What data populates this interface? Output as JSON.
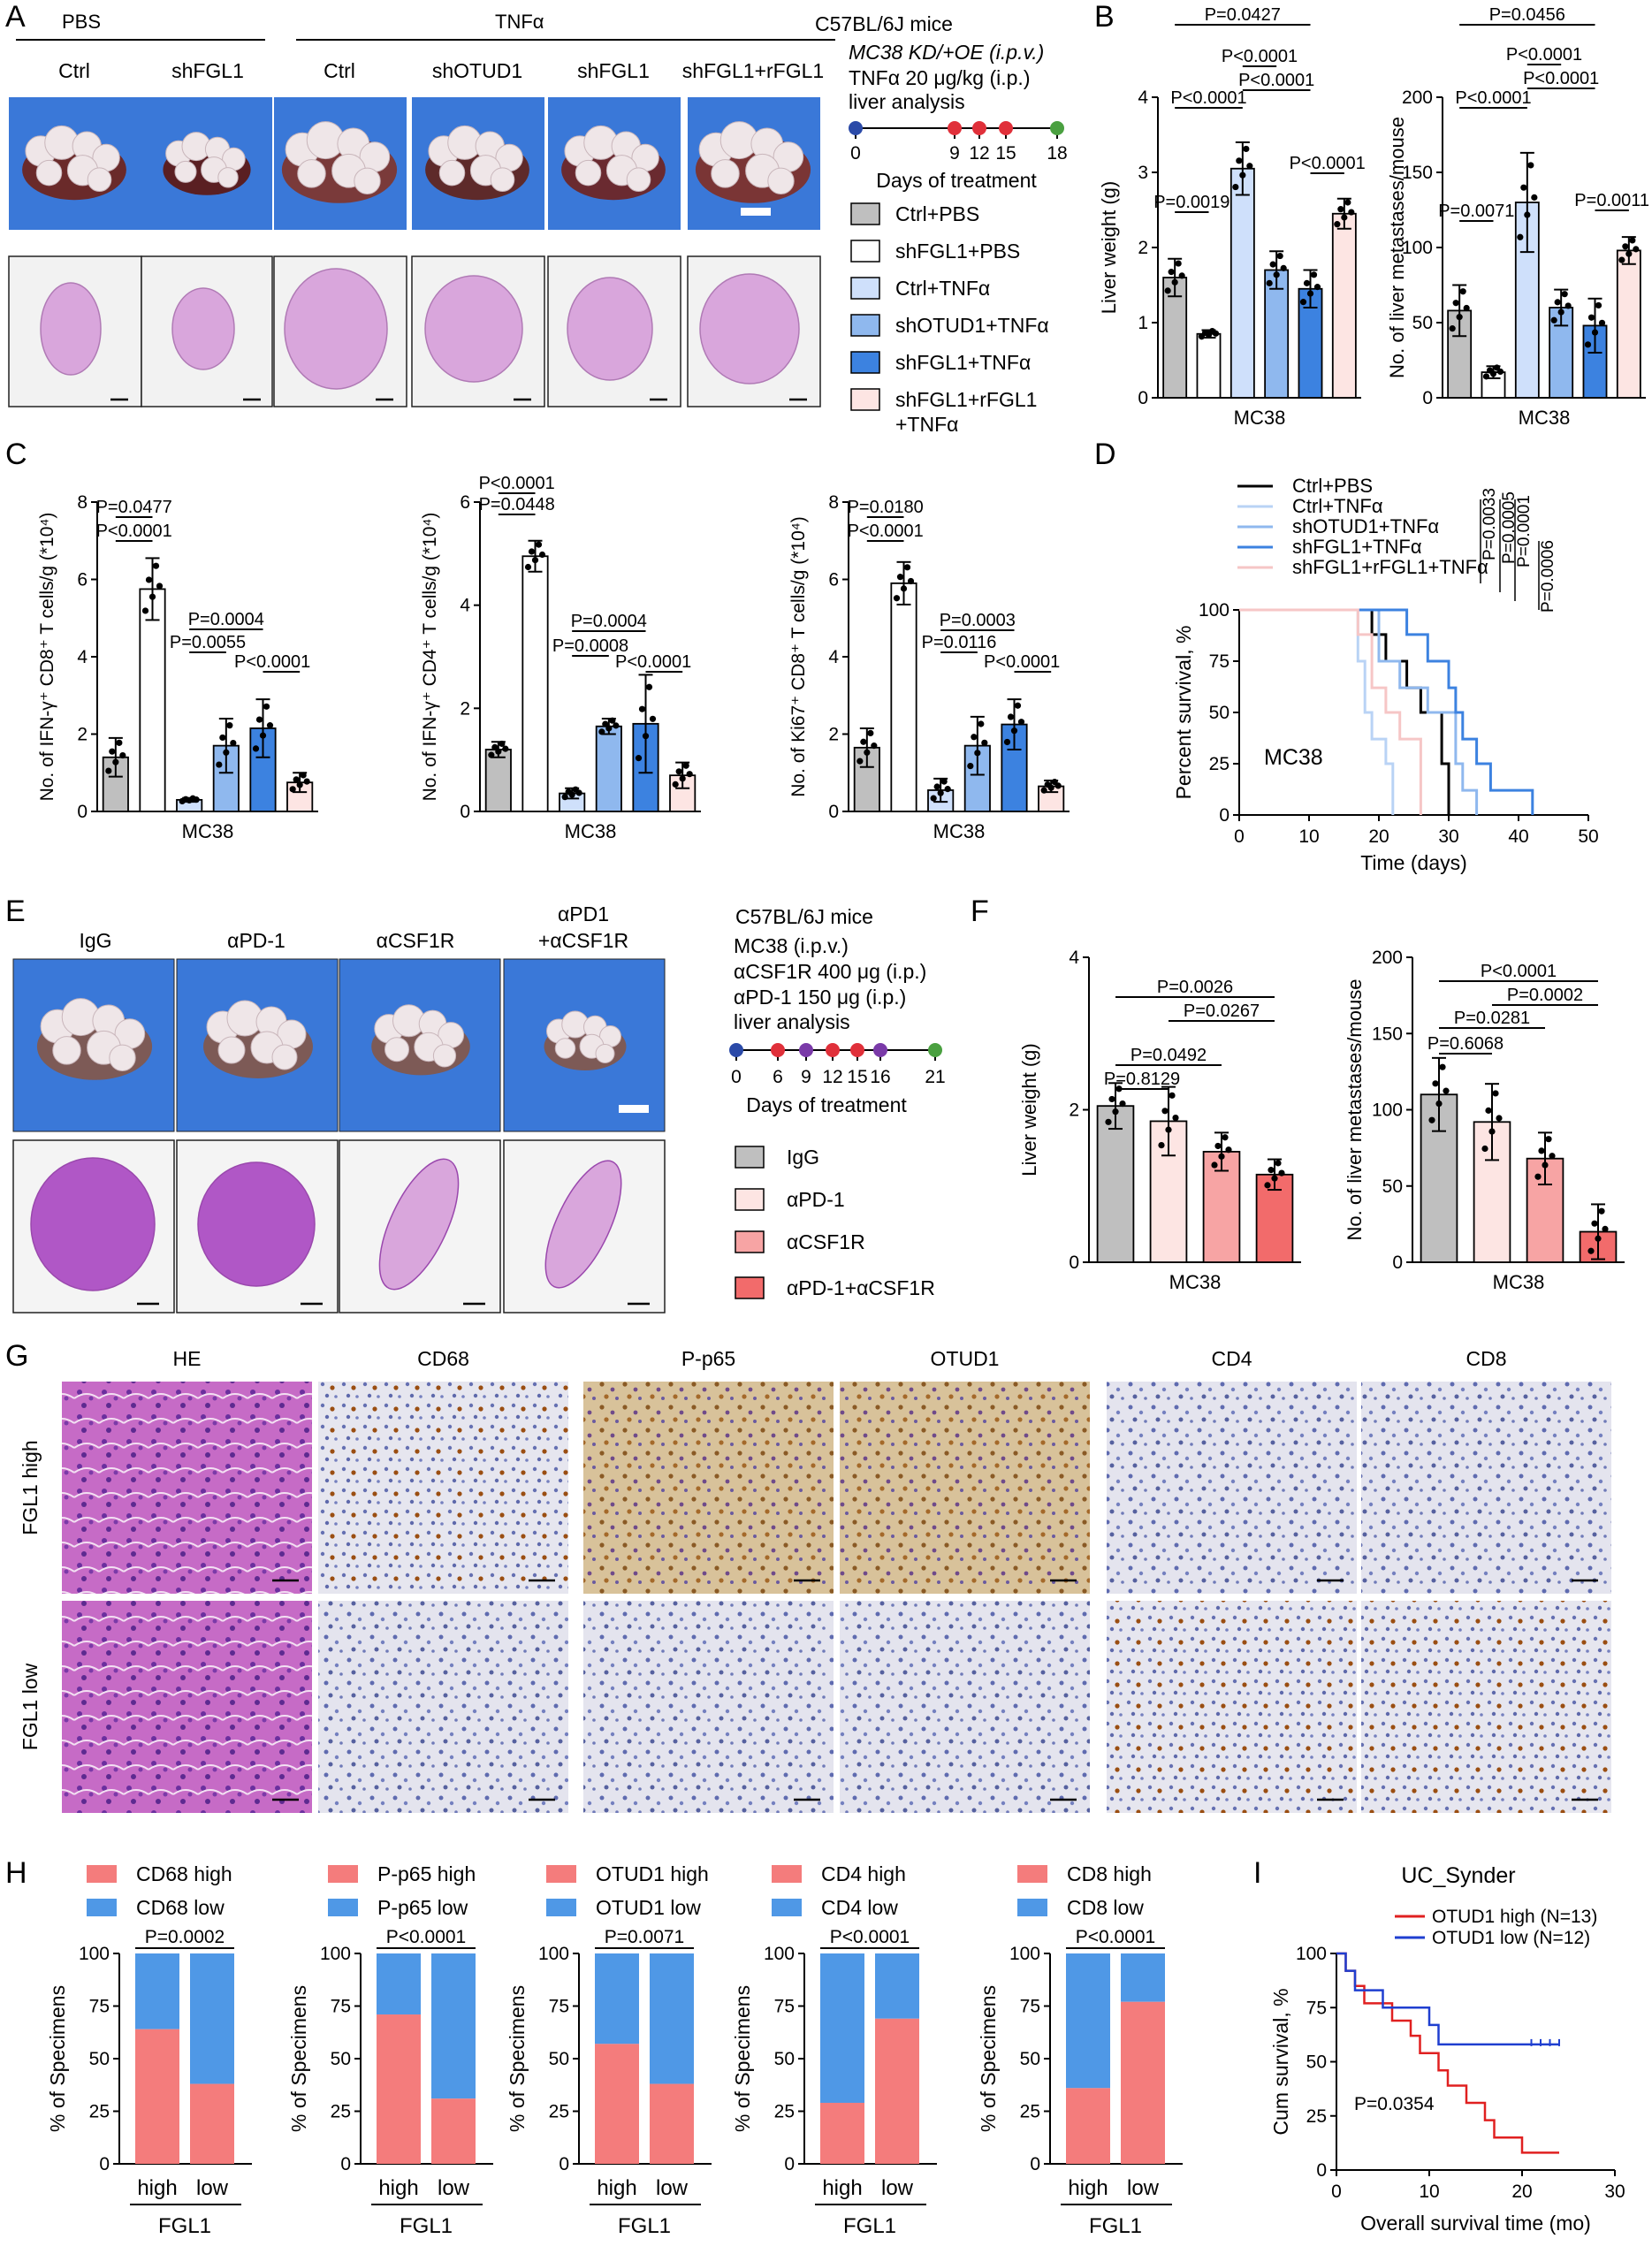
{
  "colors": {
    "ctrl_pbs": "#bfbfbf",
    "sh_pbs": "#ffffff",
    "ctrl_tnf": "#cfe0fb",
    "shotud_tnf": "#8fb8ee",
    "shfgl_tnf": "#3c82e0",
    "rfgl_tnf": "#fde5e3",
    "high": "#f47c7c",
    "low": "#4f98e6",
    "igg": "#bfbfbf",
    "apd1": "#fde5e3",
    "acsf1r": "#f7a4a4",
    "combo": "#f26b6b",
    "photo_blue": "#3a78d8",
    "he_pink": "#d9a6dc"
  },
  "panelA": {
    "label": "A",
    "groups": {
      "pbs": "PBS",
      "tnf": "TNFα"
    },
    "cols": [
      "Ctrl",
      "shFGL1",
      "Ctrl",
      "shOTUD1",
      "shFGL1",
      "shFGL1+rFGL1"
    ],
    "mouse": "C57BL/6J mice",
    "treat1": "MC38 KD/+OE (i.p.v.)",
    "treat2": "TNFα 20 μg/kg (i.p.)",
    "treat3": "liver analysis",
    "days": [
      "0",
      "9",
      "12",
      "15",
      "18"
    ],
    "days_title": "Days of treatment",
    "legend": [
      "Ctrl+PBS",
      "shFGL1+PBS",
      "Ctrl+TNFα",
      "shOTUD1+TNFα",
      "shFGL1+TNFα",
      "shFGL1+rFGL1",
      "+TNFα"
    ]
  },
  "panelB": {
    "label": "B",
    "chart_data": [
      {
        "type": "bar",
        "categories": [
          "Ctrl+PBS",
          "shFGL1+PBS",
          "Ctrl+TNFα",
          "shOTUD1+TNFα",
          "shFGL1+TNFα",
          "shFGL1+rFGL1+TNFα"
        ],
        "values": [
          1.6,
          0.85,
          3.05,
          1.7,
          1.45,
          2.45
        ],
        "errors": [
          0.25,
          0.05,
          0.35,
          0.25,
          0.25,
          0.2
        ],
        "ylabel": "Liver weight (g)",
        "xlabel": "MC38",
        "ylim": [
          0,
          4
        ],
        "yticks": [
          "0",
          "1",
          "2",
          "3",
          "4"
        ],
        "pvalues": [
          "P=0.0019",
          "P<0.0001",
          "P=0.0427",
          "P<0.0001",
          "P<0.0001",
          "P<0.0001"
        ]
      },
      {
        "type": "bar",
        "categories": [
          "Ctrl+PBS",
          "shFGL1+PBS",
          "Ctrl+TNFα",
          "shOTUD1+TNFα",
          "shFGL1+TNFα",
          "shFGL1+rFGL1+TNFα"
        ],
        "values": [
          58,
          17,
          130,
          60,
          48,
          98
        ],
        "errors": [
          17,
          4,
          33,
          12,
          18,
          9
        ],
        "ylabel": "No. of liver metastases/mouse",
        "xlabel": "MC38",
        "ylim": [
          0,
          200
        ],
        "yticks": [
          "0",
          "50",
          "100",
          "150",
          "200"
        ],
        "pvalues": [
          "P=0.0071",
          "P<0.0001",
          "P=0.0456",
          "P<0.0001",
          "P<0.0001",
          "P=0.0011"
        ]
      }
    ]
  },
  "panelC": {
    "label": "C",
    "chart_data": [
      {
        "type": "bar",
        "values": [
          1.4,
          5.75,
          0.3,
          1.7,
          2.15,
          0.75
        ],
        "errors": [
          0.5,
          0.8,
          0.05,
          0.7,
          0.75,
          0.25
        ],
        "ylabel": "No. of IFN-γ⁺ CD8⁺ T cells/g (*10⁴)",
        "xlabel": "MC38",
        "ylim": [
          0,
          8
        ],
        "yticks": [
          "0",
          "2",
          "4",
          "6",
          "8"
        ],
        "pvalues": [
          "P=0.0477",
          "P<0.0001",
          "P=0.0004",
          "P=0.0055",
          "P<0.0001"
        ]
      },
      {
        "type": "bar",
        "values": [
          1.2,
          4.95,
          0.35,
          1.65,
          1.7,
          0.7
        ],
        "errors": [
          0.15,
          0.3,
          0.1,
          0.15,
          0.95,
          0.25
        ],
        "ylabel": "No. of IFN-γ⁺ CD4⁺ T cells/g (*10⁴)",
        "xlabel": "MC38",
        "ylim": [
          0,
          6
        ],
        "yticks": [
          "0",
          "2",
          "4",
          "6"
        ],
        "pvalues": [
          "P=0.0448",
          "P<0.0001",
          "P=0.0004",
          "P=0.0008",
          "P<0.0001"
        ]
      },
      {
        "type": "bar",
        "values": [
          1.65,
          5.9,
          0.55,
          1.7,
          2.25,
          0.65
        ],
        "errors": [
          0.5,
          0.55,
          0.3,
          0.75,
          0.65,
          0.15
        ],
        "ylabel": "No. of  Ki67⁺ CD8⁺ T cells/g (*10⁴)",
        "xlabel": "MC38",
        "ylim": [
          0,
          8
        ],
        "yticks": [
          "0",
          "2",
          "4",
          "6",
          "8"
        ],
        "pvalues": [
          "P=0.0180",
          "P<0.0001",
          "P=0.0003",
          "P=0.0116",
          "P<0.0001"
        ]
      }
    ]
  },
  "panelD": {
    "label": "D",
    "chart_data": {
      "type": "line",
      "xlabel": "Time (days)",
      "ylabel": "Percent survival, %",
      "xlim": [
        0,
        50
      ],
      "ylim": [
        0,
        100
      ],
      "xticks": [
        "0",
        "10",
        "20",
        "30",
        "40",
        "50"
      ],
      "yticks": [
        "0",
        "25",
        "50",
        "75",
        "100"
      ],
      "annotation": "MC38",
      "series": [
        {
          "name": "Ctrl+PBS",
          "points": [
            [
              0,
              100
            ],
            [
              19,
              100
            ],
            [
              19,
              88
            ],
            [
              21,
              88
            ],
            [
              21,
              75
            ],
            [
              24,
              75
            ],
            [
              24,
              62
            ],
            [
              26,
              62
            ],
            [
              26,
              50
            ],
            [
              29,
              50
            ],
            [
              29,
              25
            ],
            [
              30,
              25
            ],
            [
              30,
              0
            ]
          ]
        },
        {
          "name": "Ctrl+TNFα",
          "points": [
            [
              0,
              100
            ],
            [
              17,
              100
            ],
            [
              17,
              75
            ],
            [
              18,
              75
            ],
            [
              18,
              50
            ],
            [
              19,
              50
            ],
            [
              19,
              37
            ],
            [
              21,
              37
            ],
            [
              21,
              25
            ],
            [
              22,
              25
            ],
            [
              22,
              0
            ]
          ]
        },
        {
          "name": "shOTUD1+TNFα",
          "points": [
            [
              0,
              100
            ],
            [
              20,
              100
            ],
            [
              20,
              75
            ],
            [
              23,
              75
            ],
            [
              23,
              62
            ],
            [
              27,
              62
            ],
            [
              27,
              50
            ],
            [
              31,
              50
            ],
            [
              31,
              25
            ],
            [
              32,
              25
            ],
            [
              32,
              12
            ],
            [
              34,
              12
            ],
            [
              34,
              0
            ]
          ]
        },
        {
          "name": "shFGL1+TNFα",
          "points": [
            [
              0,
              100
            ],
            [
              24,
              100
            ],
            [
              24,
              88
            ],
            [
              27,
              88
            ],
            [
              27,
              75
            ],
            [
              30,
              75
            ],
            [
              30,
              62
            ],
            [
              31,
              62
            ],
            [
              31,
              50
            ],
            [
              32,
              50
            ],
            [
              32,
              37
            ],
            [
              34,
              37
            ],
            [
              34,
              25
            ],
            [
              36,
              25
            ],
            [
              36,
              12
            ],
            [
              42,
              12
            ],
            [
              42,
              0
            ]
          ]
        },
        {
          "name": "shFGL1+rFGL1+TNFα",
          "points": [
            [
              0,
              100
            ],
            [
              17,
              100
            ],
            [
              17,
              88
            ],
            [
              19,
              88
            ],
            [
              19,
              62
            ],
            [
              21,
              62
            ],
            [
              21,
              50
            ],
            [
              23,
              50
            ],
            [
              23,
              37
            ],
            [
              26,
              37
            ],
            [
              26,
              0
            ]
          ]
        }
      ],
      "pvalues": [
        "P=0.0033",
        "P=0.0005",
        "P=0.0001",
        "P=0.0006"
      ]
    }
  },
  "panelE": {
    "label": "E",
    "cols": [
      "IgG",
      "αPD-1",
      "αCSF1R",
      "αPD1",
      "+αCSF1R"
    ],
    "mouse": "C57BL/6J mice",
    "treat1": "MC38 (i.p.v.)",
    "treat2": "αCSF1R 400 μg (i.p.)",
    "treat3": "αPD-1 150 μg (i.p.)",
    "treat4": "liver analysis",
    "days": [
      "0",
      "6",
      "9",
      "12",
      "15",
      "16",
      "21"
    ],
    "days_title": "Days of treatment",
    "legend": [
      "IgG",
      "αPD-1",
      "αCSF1R",
      "αPD-1+αCSF1R"
    ]
  },
  "panelF": {
    "label": "F",
    "chart_data": [
      {
        "type": "bar",
        "categories": [
          "IgG",
          "αPD-1",
          "αCSF1R",
          "αPD-1+αCSF1R"
        ],
        "values": [
          2.05,
          1.85,
          1.45,
          1.15
        ],
        "errors": [
          0.3,
          0.45,
          0.25,
          0.2
        ],
        "ylabel": "Liver weight (g)",
        "xlabel": "MC38",
        "ylim": [
          0,
          4
        ],
        "yticks": [
          "0",
          "2",
          "4"
        ],
        "pvalues": [
          "P=0.8129",
          "P=0.0492",
          "P=0.0267",
          "P=0.0026"
        ]
      },
      {
        "type": "bar",
        "categories": [
          "IgG",
          "αPD-1",
          "αCSF1R",
          "αPD-1+αCSF1R"
        ],
        "values": [
          110,
          92,
          68,
          20
        ],
        "errors": [
          24,
          25,
          17,
          18
        ],
        "ylabel": "No. of liver metastases/mouse",
        "xlabel": "MC38",
        "ylim": [
          0,
          200
        ],
        "yticks": [
          "0",
          "50",
          "100",
          "150",
          "200"
        ],
        "pvalues": [
          "P=0.6068",
          "P=0.0281",
          "P=0.0002",
          "P<0.0001"
        ]
      }
    ]
  },
  "panelG": {
    "label": "G",
    "cols": [
      "HE",
      "CD68",
      "P-p65",
      "OTUD1",
      "CD4",
      "CD8"
    ],
    "rows": [
      "FGL1 high",
      "FGL1 low"
    ]
  },
  "panelH": {
    "label": "H",
    "chart_data": [
      {
        "type": "bar",
        "stacked": true,
        "legend": [
          "CD68 high",
          "CD68 low"
        ],
        "high": [
          64,
          38
        ],
        "pvalue": "P=0.0002",
        "categories": [
          "high",
          "low"
        ],
        "xlabel": "FGL1",
        "ylabel": "% of Specimens",
        "yticks": [
          "0",
          "25",
          "50",
          "75",
          "100"
        ]
      },
      {
        "type": "bar",
        "stacked": true,
        "legend": [
          "P-p65 high",
          "P-p65 low"
        ],
        "high": [
          71,
          31
        ],
        "pvalue": "P<0.0001",
        "categories": [
          "high",
          "low"
        ],
        "xlabel": "FGL1",
        "ylabel": "% of Specimens",
        "yticks": [
          "0",
          "25",
          "50",
          "75",
          "100"
        ]
      },
      {
        "type": "bar",
        "stacked": true,
        "legend": [
          "OTUD1 high",
          "OTUD1 low"
        ],
        "high": [
          57,
          38
        ],
        "pvalue": "P=0.0071",
        "categories": [
          "high",
          "low"
        ],
        "xlabel": "FGL1",
        "ylabel": "% of Specimens",
        "yticks": [
          "0",
          "25",
          "50",
          "75",
          "100"
        ]
      },
      {
        "type": "bar",
        "stacked": true,
        "legend": [
          "CD4 high",
          "CD4 low"
        ],
        "high": [
          29,
          69
        ],
        "pvalue": "P<0.0001",
        "categories": [
          "high",
          "low"
        ],
        "xlabel": "FGL1",
        "ylabel": "% of Specimens",
        "yticks": [
          "0",
          "25",
          "50",
          "75",
          "100"
        ]
      },
      {
        "type": "bar",
        "stacked": true,
        "legend": [
          "CD8 high",
          "CD8 low"
        ],
        "high": [
          36,
          77
        ],
        "pvalue": "P<0.0001",
        "categories": [
          "high",
          "low"
        ],
        "xlabel": "FGL1",
        "ylabel": "% of Specimens",
        "yticks": [
          "0",
          "25",
          "50",
          "75",
          "100"
        ]
      }
    ]
  },
  "panelI": {
    "label": "I",
    "chart_data": {
      "type": "line",
      "title": "UC_Synder",
      "xlabel": "Overall survival time (mo)",
      "ylabel": "Cum survival, %",
      "xlim": [
        0,
        30
      ],
      "ylim": [
        0,
        100
      ],
      "xticks": [
        "0",
        "10",
        "20",
        "30"
      ],
      "yticks": [
        "0",
        "25",
        "50",
        "75",
        "100"
      ],
      "pvalue": "P=0.0354",
      "series": [
        {
          "name": "OTUD1 high (N=13)",
          "color": "#e02020",
          "points": [
            [
              0,
              100
            ],
            [
              1,
              100
            ],
            [
              1,
              92
            ],
            [
              2,
              92
            ],
            [
              2,
              85
            ],
            [
              3,
              85
            ],
            [
              3,
              77
            ],
            [
              6,
              77
            ],
            [
              6,
              69
            ],
            [
              8,
              69
            ],
            [
              8,
              62
            ],
            [
              9,
              62
            ],
            [
              9,
              54
            ],
            [
              11,
              54
            ],
            [
              11,
              46
            ],
            [
              12,
              46
            ],
            [
              12,
              39
            ],
            [
              14,
              39
            ],
            [
              14,
              31
            ],
            [
              16,
              31
            ],
            [
              16,
              23
            ],
            [
              17,
              23
            ],
            [
              17,
              15
            ],
            [
              20,
              15
            ],
            [
              20,
              8
            ],
            [
              24,
              8
            ]
          ]
        },
        {
          "name": "OTUD1 low (N=12)",
          "color": "#1f3fd0",
          "points": [
            [
              0,
              100
            ],
            [
              1,
              100
            ],
            [
              1,
              92
            ],
            [
              2,
              92
            ],
            [
              2,
              83
            ],
            [
              5,
              83
            ],
            [
              5,
              75
            ],
            [
              10,
              75
            ],
            [
              10,
              67
            ],
            [
              11,
              67
            ],
            [
              11,
              58
            ],
            [
              24,
              58
            ]
          ]
        }
      ]
    }
  }
}
